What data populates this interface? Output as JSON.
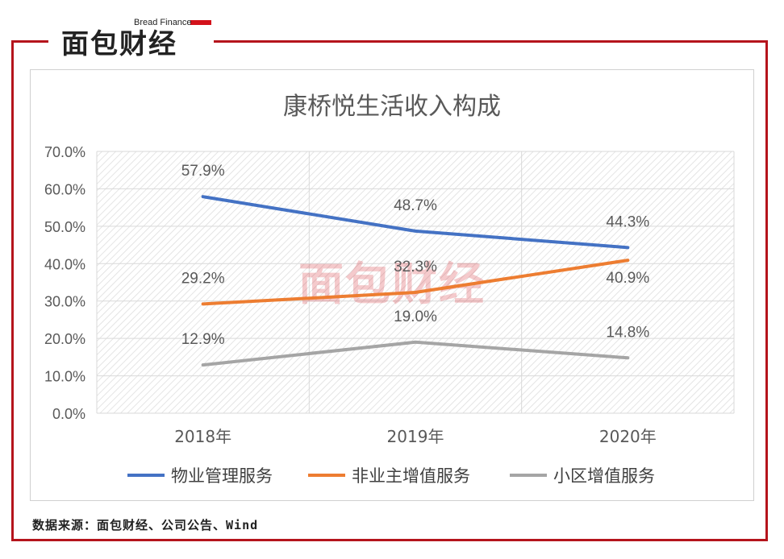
{
  "brand": {
    "logo_text": "面包财经",
    "logo_subtitle": "Bread Finance",
    "colors": {
      "accent": "#b5141c",
      "logo_red": "#d3121b"
    }
  },
  "footer": {
    "source": "数据来源：面包财经、公司公告、Wind"
  },
  "chart_data": {
    "type": "line",
    "title": "康桥悦生活收入构成",
    "categories": [
      "2018年",
      "2019年",
      "2020年"
    ],
    "ylim": [
      0,
      70
    ],
    "yticks": [
      0,
      10,
      20,
      30,
      40,
      50,
      60,
      70
    ],
    "ytick_labels": [
      "0.0%",
      "10.0%",
      "20.0%",
      "30.0%",
      "40.0%",
      "50.0%",
      "60.0%",
      "70.0%"
    ],
    "xlabel": "",
    "ylabel": "",
    "grid": true,
    "legend_position": "bottom",
    "series": [
      {
        "name": "物业管理服务",
        "values": [
          57.9,
          48.7,
          44.3
        ],
        "labels": [
          "57.9%",
          "48.7%",
          "44.3%"
        ],
        "color": "#4472c4"
      },
      {
        "name": "非业主增值服务",
        "values": [
          29.2,
          32.3,
          40.9
        ],
        "labels": [
          "29.2%",
          "32.3%",
          "40.9%"
        ],
        "color": "#ed7d31"
      },
      {
        "name": "小区增值服务",
        "values": [
          12.9,
          19.0,
          14.8
        ],
        "labels": [
          "12.9%",
          "19.0%",
          "14.8%"
        ],
        "color": "#a5a5a5"
      }
    ]
  }
}
